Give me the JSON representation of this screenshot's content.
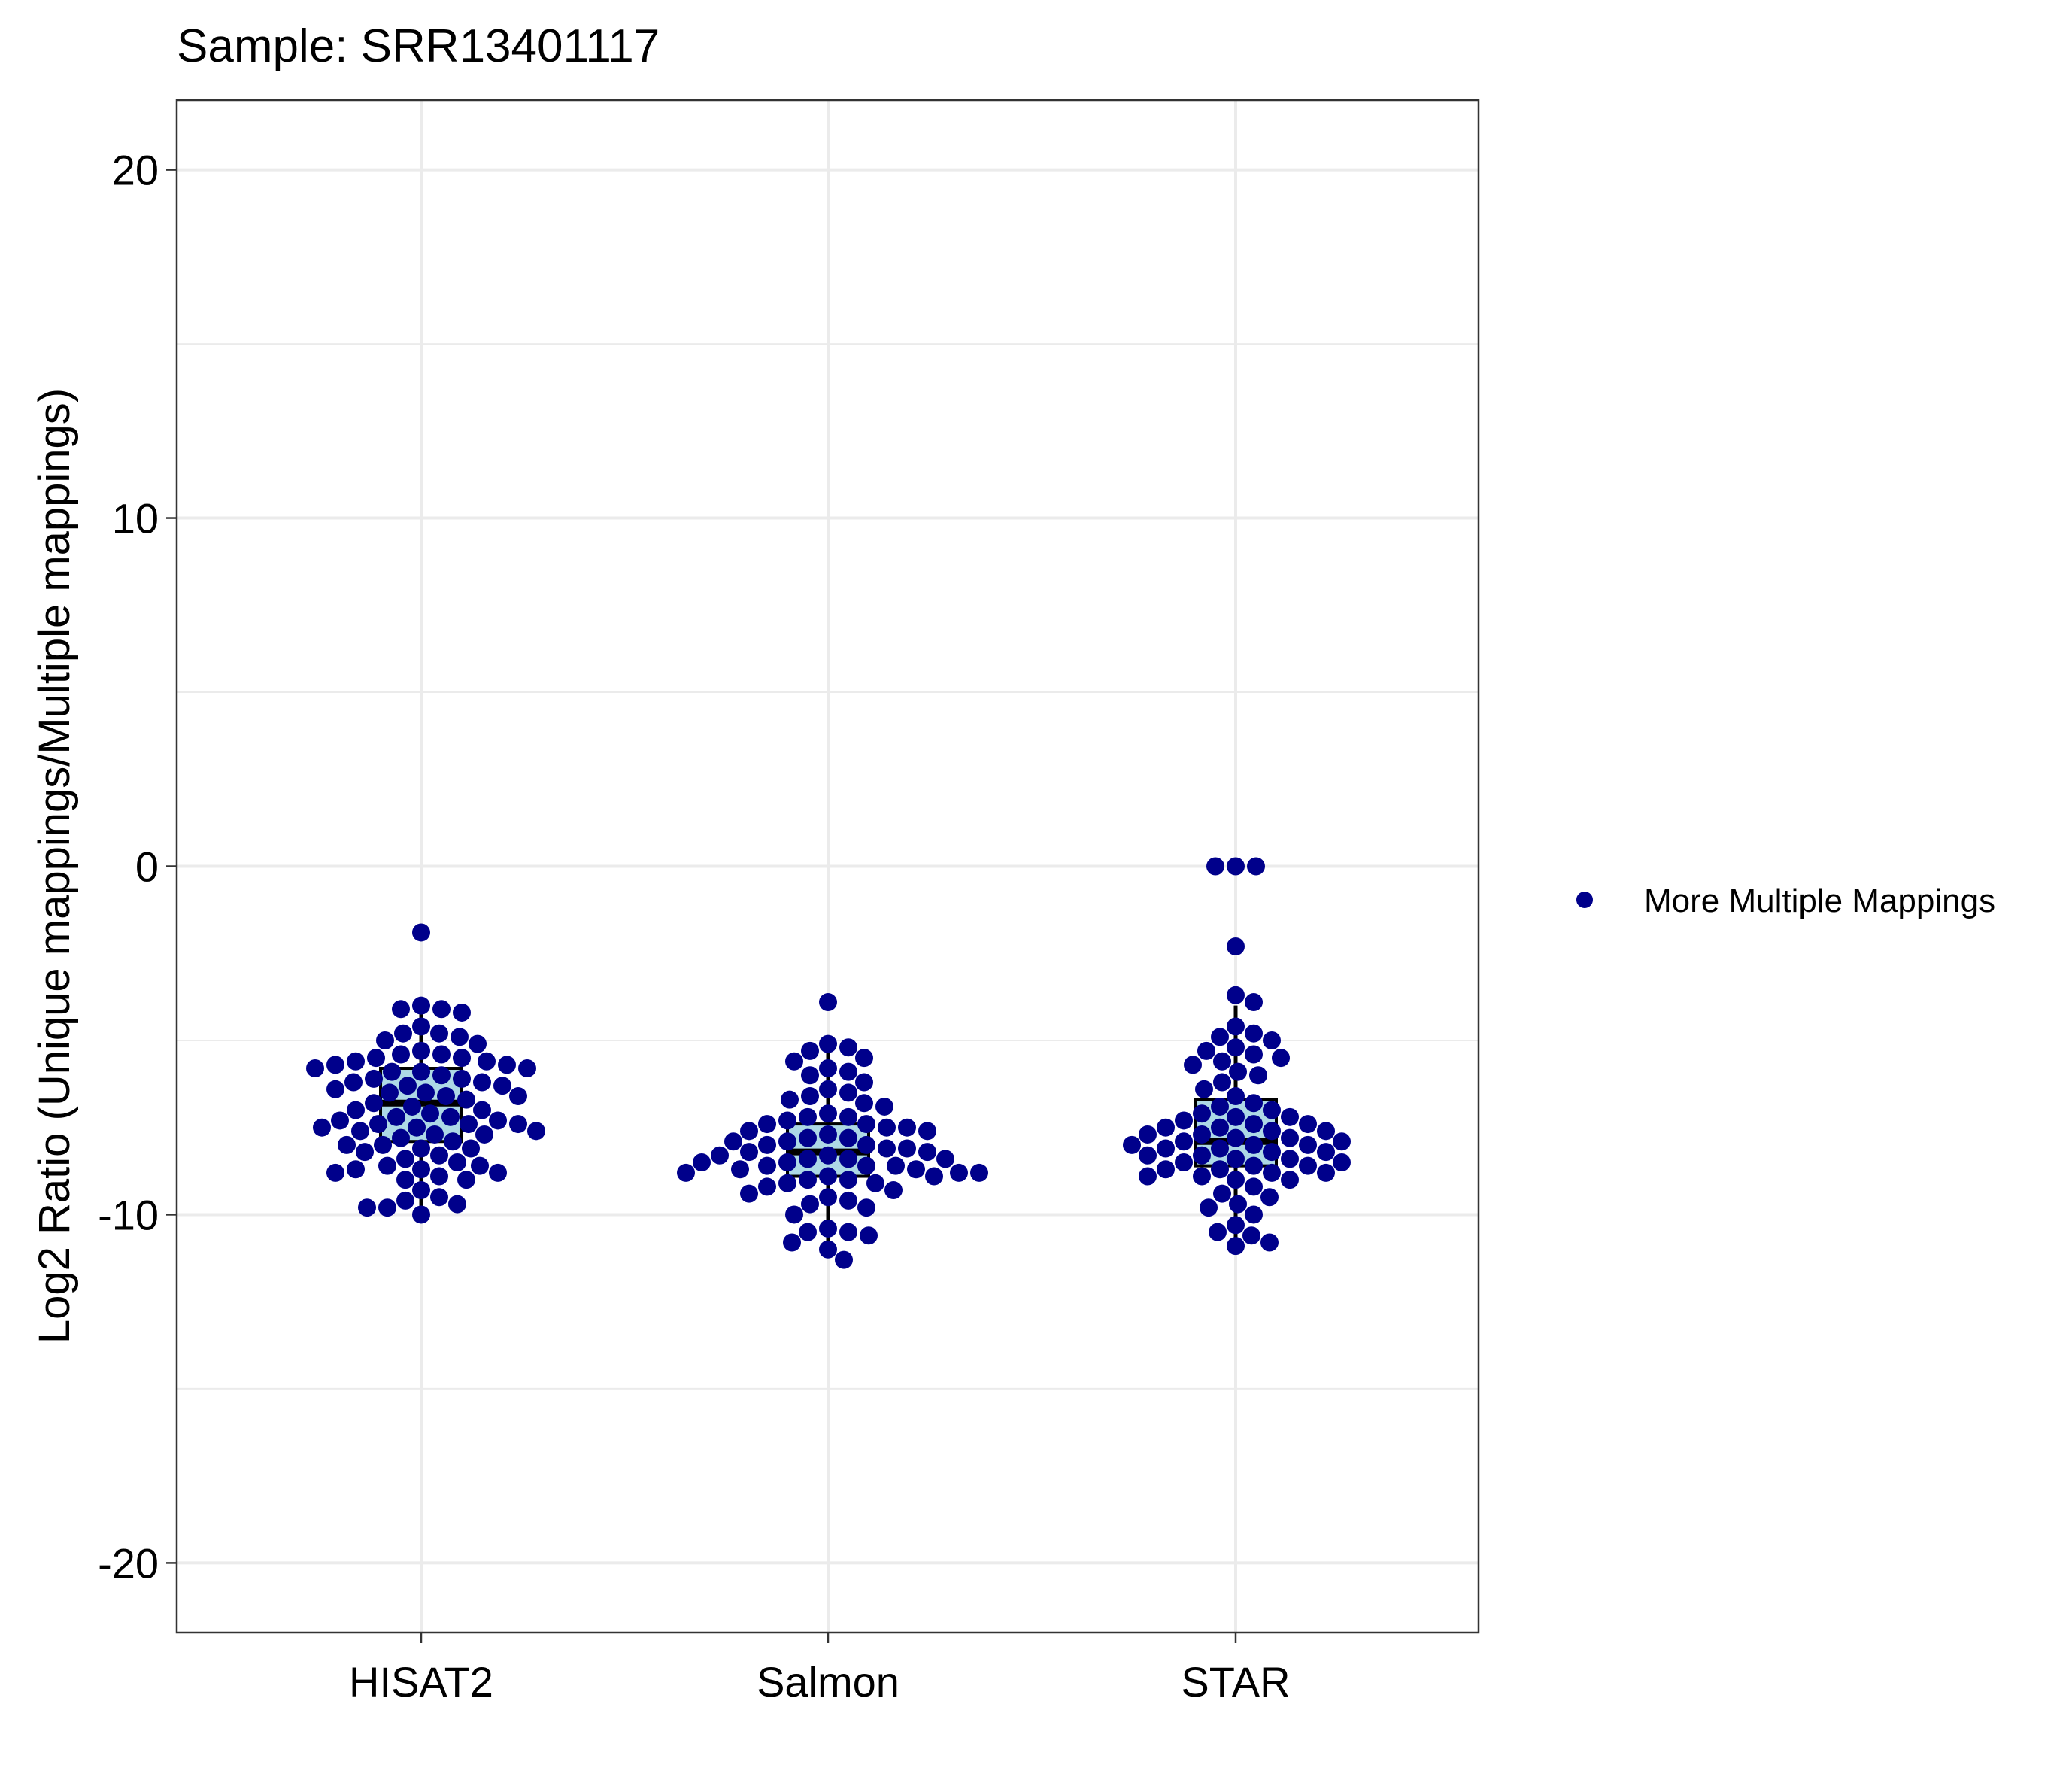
{
  "chart_data": {
    "type": "box+beeswarm",
    "title": "Sample: SRR13401117",
    "xlabel": "",
    "ylabel": "Log2 Ratio (Unique mappings/Multiple mappings)",
    "ylim": [
      -22,
      22
    ],
    "yticks": [
      "-20",
      "-10",
      "0",
      "10",
      "20"
    ],
    "categories": [
      "HISAT2",
      "Salmon",
      "STAR"
    ],
    "grid": true,
    "legend": {
      "position": "right",
      "entries": [
        {
          "label": "More Multiple Mappings",
          "color": "#00008B"
        }
      ]
    },
    "point_color": "#00008B",
    "box_fill": "#ADD8E6",
    "boxes": [
      {
        "category": "HISAT2",
        "whisker_low": -10.0,
        "q1": -7.9,
        "median": -6.8,
        "q3": -5.8,
        "whisker_high": -4.0
      },
      {
        "category": "Salmon",
        "whisker_low": -11.2,
        "q1": -8.9,
        "median": -8.2,
        "q3": -7.4,
        "whisker_high": -5.2
      },
      {
        "category": "STAR",
        "whisker_low": -10.9,
        "q1": -8.6,
        "median": -7.9,
        "q3": -6.7,
        "whisker_high": -4.0
      }
    ],
    "series": [
      {
        "category": "HISAT2",
        "values": [
          -1.9,
          -4.0,
          -4.1,
          -4.1,
          -4.2,
          -4.6,
          -4.8,
          -4.8,
          -4.9,
          -5.0,
          -5.1,
          -5.3,
          -5.4,
          -5.4,
          -5.5,
          -5.5,
          -5.6,
          -5.6,
          -5.7,
          -5.7,
          -5.8,
          -5.8,
          -5.9,
          -5.9,
          -6.0,
          -6.1,
          -6.1,
          -6.2,
          -6.2,
          -6.3,
          -6.3,
          -6.4,
          -6.5,
          -6.5,
          -6.6,
          -6.6,
          -6.7,
          -6.8,
          -6.9,
          -7.0,
          -7.0,
          -7.1,
          -7.2,
          -7.2,
          -7.3,
          -7.3,
          -7.4,
          -7.4,
          -7.4,
          -7.5,
          -7.5,
          -7.6,
          -7.6,
          -7.7,
          -7.7,
          -7.8,
          -7.9,
          -8.0,
          -8.0,
          -8.1,
          -8.1,
          -8.2,
          -8.3,
          -8.4,
          -8.5,
          -8.6,
          -8.6,
          -8.7,
          -8.7,
          -8.8,
          -8.8,
          -8.9,
          -9.0,
          -9.0,
          -9.3,
          -9.5,
          -9.6,
          -9.7,
          -9.8,
          -9.8,
          -10.0
        ]
      },
      {
        "category": "Salmon",
        "values": [
          -3.9,
          -5.1,
          -5.2,
          -5.3,
          -5.5,
          -5.6,
          -5.8,
          -5.9,
          -6.0,
          -6.2,
          -6.4,
          -6.5,
          -6.6,
          -6.7,
          -6.8,
          -6.9,
          -7.1,
          -7.2,
          -7.2,
          -7.3,
          -7.4,
          -7.4,
          -7.5,
          -7.5,
          -7.6,
          -7.6,
          -7.7,
          -7.8,
          -7.8,
          -7.9,
          -7.9,
          -8.0,
          -8.0,
          -8.1,
          -8.1,
          -8.2,
          -8.2,
          -8.3,
          -8.3,
          -8.4,
          -8.4,
          -8.4,
          -8.5,
          -8.5,
          -8.6,
          -8.6,
          -8.6,
          -8.7,
          -8.7,
          -8.8,
          -8.8,
          -8.8,
          -8.9,
          -8.9,
          -9.0,
          -9.0,
          -9.1,
          -9.1,
          -9.2,
          -9.3,
          -9.4,
          -9.5,
          -9.6,
          -9.7,
          -9.8,
          -10.0,
          -10.4,
          -10.5,
          -10.5,
          -10.6,
          -10.8,
          -11.0,
          -11.3
        ]
      },
      {
        "category": "STAR",
        "values": [
          0.0,
          0.0,
          0.0,
          -2.3,
          -3.7,
          -3.9,
          -4.6,
          -4.8,
          -4.9,
          -5.0,
          -5.2,
          -5.3,
          -5.4,
          -5.5,
          -5.6,
          -5.7,
          -5.9,
          -6.0,
          -6.2,
          -6.4,
          -6.6,
          -6.8,
          -6.9,
          -7.0,
          -7.1,
          -7.2,
          -7.2,
          -7.3,
          -7.4,
          -7.4,
          -7.5,
          -7.5,
          -7.6,
          -7.6,
          -7.7,
          -7.7,
          -7.8,
          -7.8,
          -7.9,
          -7.9,
          -8.0,
          -8.0,
          -8.0,
          -8.1,
          -8.1,
          -8.2,
          -8.2,
          -8.3,
          -8.3,
          -8.4,
          -8.4,
          -8.5,
          -8.5,
          -8.6,
          -8.6,
          -8.7,
          -8.7,
          -8.8,
          -8.8,
          -8.9,
          -8.9,
          -9.0,
          -9.0,
          -9.2,
          -9.4,
          -9.5,
          -9.7,
          -9.8,
          -10.0,
          -10.3,
          -10.5,
          -10.6,
          -10.8,
          -10.9
        ]
      }
    ]
  }
}
